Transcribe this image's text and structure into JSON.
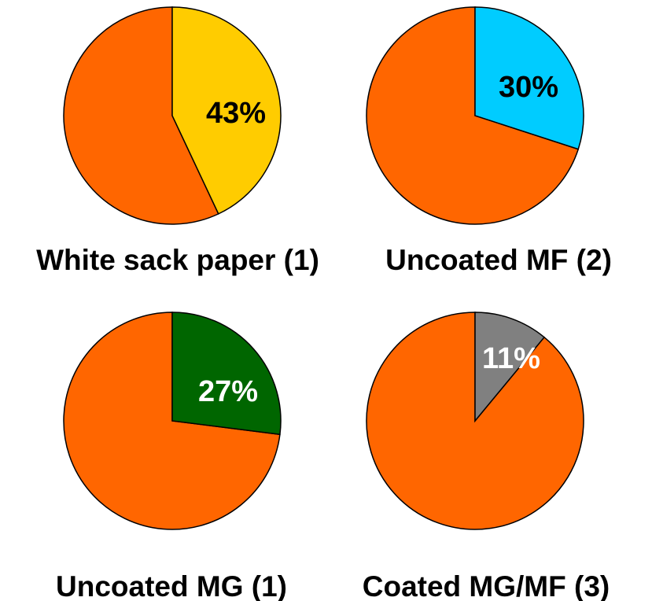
{
  "chart_data": [
    {
      "type": "pie",
      "title": "White sack paper (1)",
      "highlight": {
        "label": "43%",
        "value": 43,
        "color": "#FFCC00",
        "label_color": "#000000"
      },
      "remainder": {
        "value": 57,
        "color": "#FF6600"
      }
    },
    {
      "type": "pie",
      "title": "Uncoated MF (2)",
      "highlight": {
        "label": "30%",
        "value": 30,
        "color": "#00CCFF",
        "label_color": "#000000"
      },
      "remainder": {
        "value": 70,
        "color": "#FF6600"
      }
    },
    {
      "type": "pie",
      "title": "Uncoated MG (1)",
      "highlight": {
        "label": "27%",
        "value": 27,
        "color": "#006600",
        "label_color": "#FFFFFF"
      },
      "remainder": {
        "value": 73,
        "color": "#FF6600"
      }
    },
    {
      "type": "pie",
      "title": "Coated MG/MF (3)",
      "highlight": {
        "label": "11%",
        "value": 11,
        "color": "#808080",
        "label_color": "#FFFFFF"
      },
      "remainder": {
        "value": 89,
        "color": "#FF6600"
      }
    }
  ]
}
